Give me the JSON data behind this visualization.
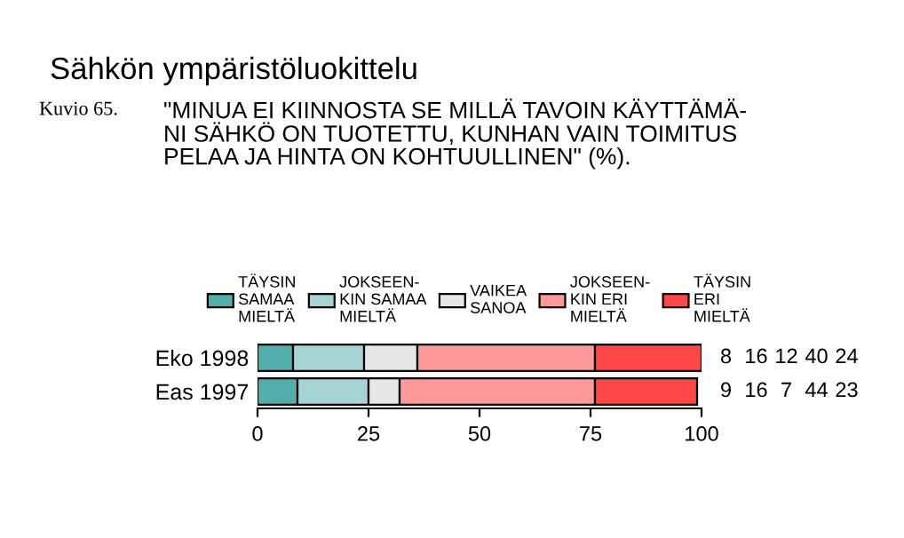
{
  "chart_data": {
    "type": "bar",
    "orientation": "horizontal",
    "stacked": true,
    "title": "Sähkön ympäristöluokittelu",
    "subtitle": "\"MINUA EI KIINNOSTA SE MILLÄ TAVOIN KÄYTTÄMÄ-\nNI SÄHKÖ ON TUOTETTU, KUNHAN VAIN TOIMITUS\nPELAA JA HINTA ON KOHTUULLINEN\" (%).",
    "annotations": [
      "Kuvio 65."
    ],
    "categories": [
      "Eko 1998",
      "Eas 1997"
    ],
    "series": [
      {
        "name": "TÄYSIN\nSAMAA\nMIELTÄ",
        "color": "#52aeab",
        "values": [
          8,
          9
        ]
      },
      {
        "name": "JOKSEEN-\nKIN SAMAA\nMIELTÄ",
        "color": "#a6d3d3",
        "values": [
          16,
          16
        ]
      },
      {
        "name": "VAIKEA\nSANOA",
        "color": "#e6e6e6",
        "values": [
          12,
          7
        ]
      },
      {
        "name": "JOKSEEN-\nKIN ERI\nMIELTÄ",
        "color": "#ff9999",
        "values": [
          40,
          44
        ]
      },
      {
        "name": "TÄYSIN\nERI\nMIELTÄ",
        "color": "#ff4747",
        "values": [
          24,
          23
        ]
      }
    ],
    "xlim": [
      0,
      100
    ],
    "xticks": [
      0,
      25,
      50,
      75,
      100
    ],
    "data_labels": true,
    "legend": "top",
    "grid": false
  }
}
